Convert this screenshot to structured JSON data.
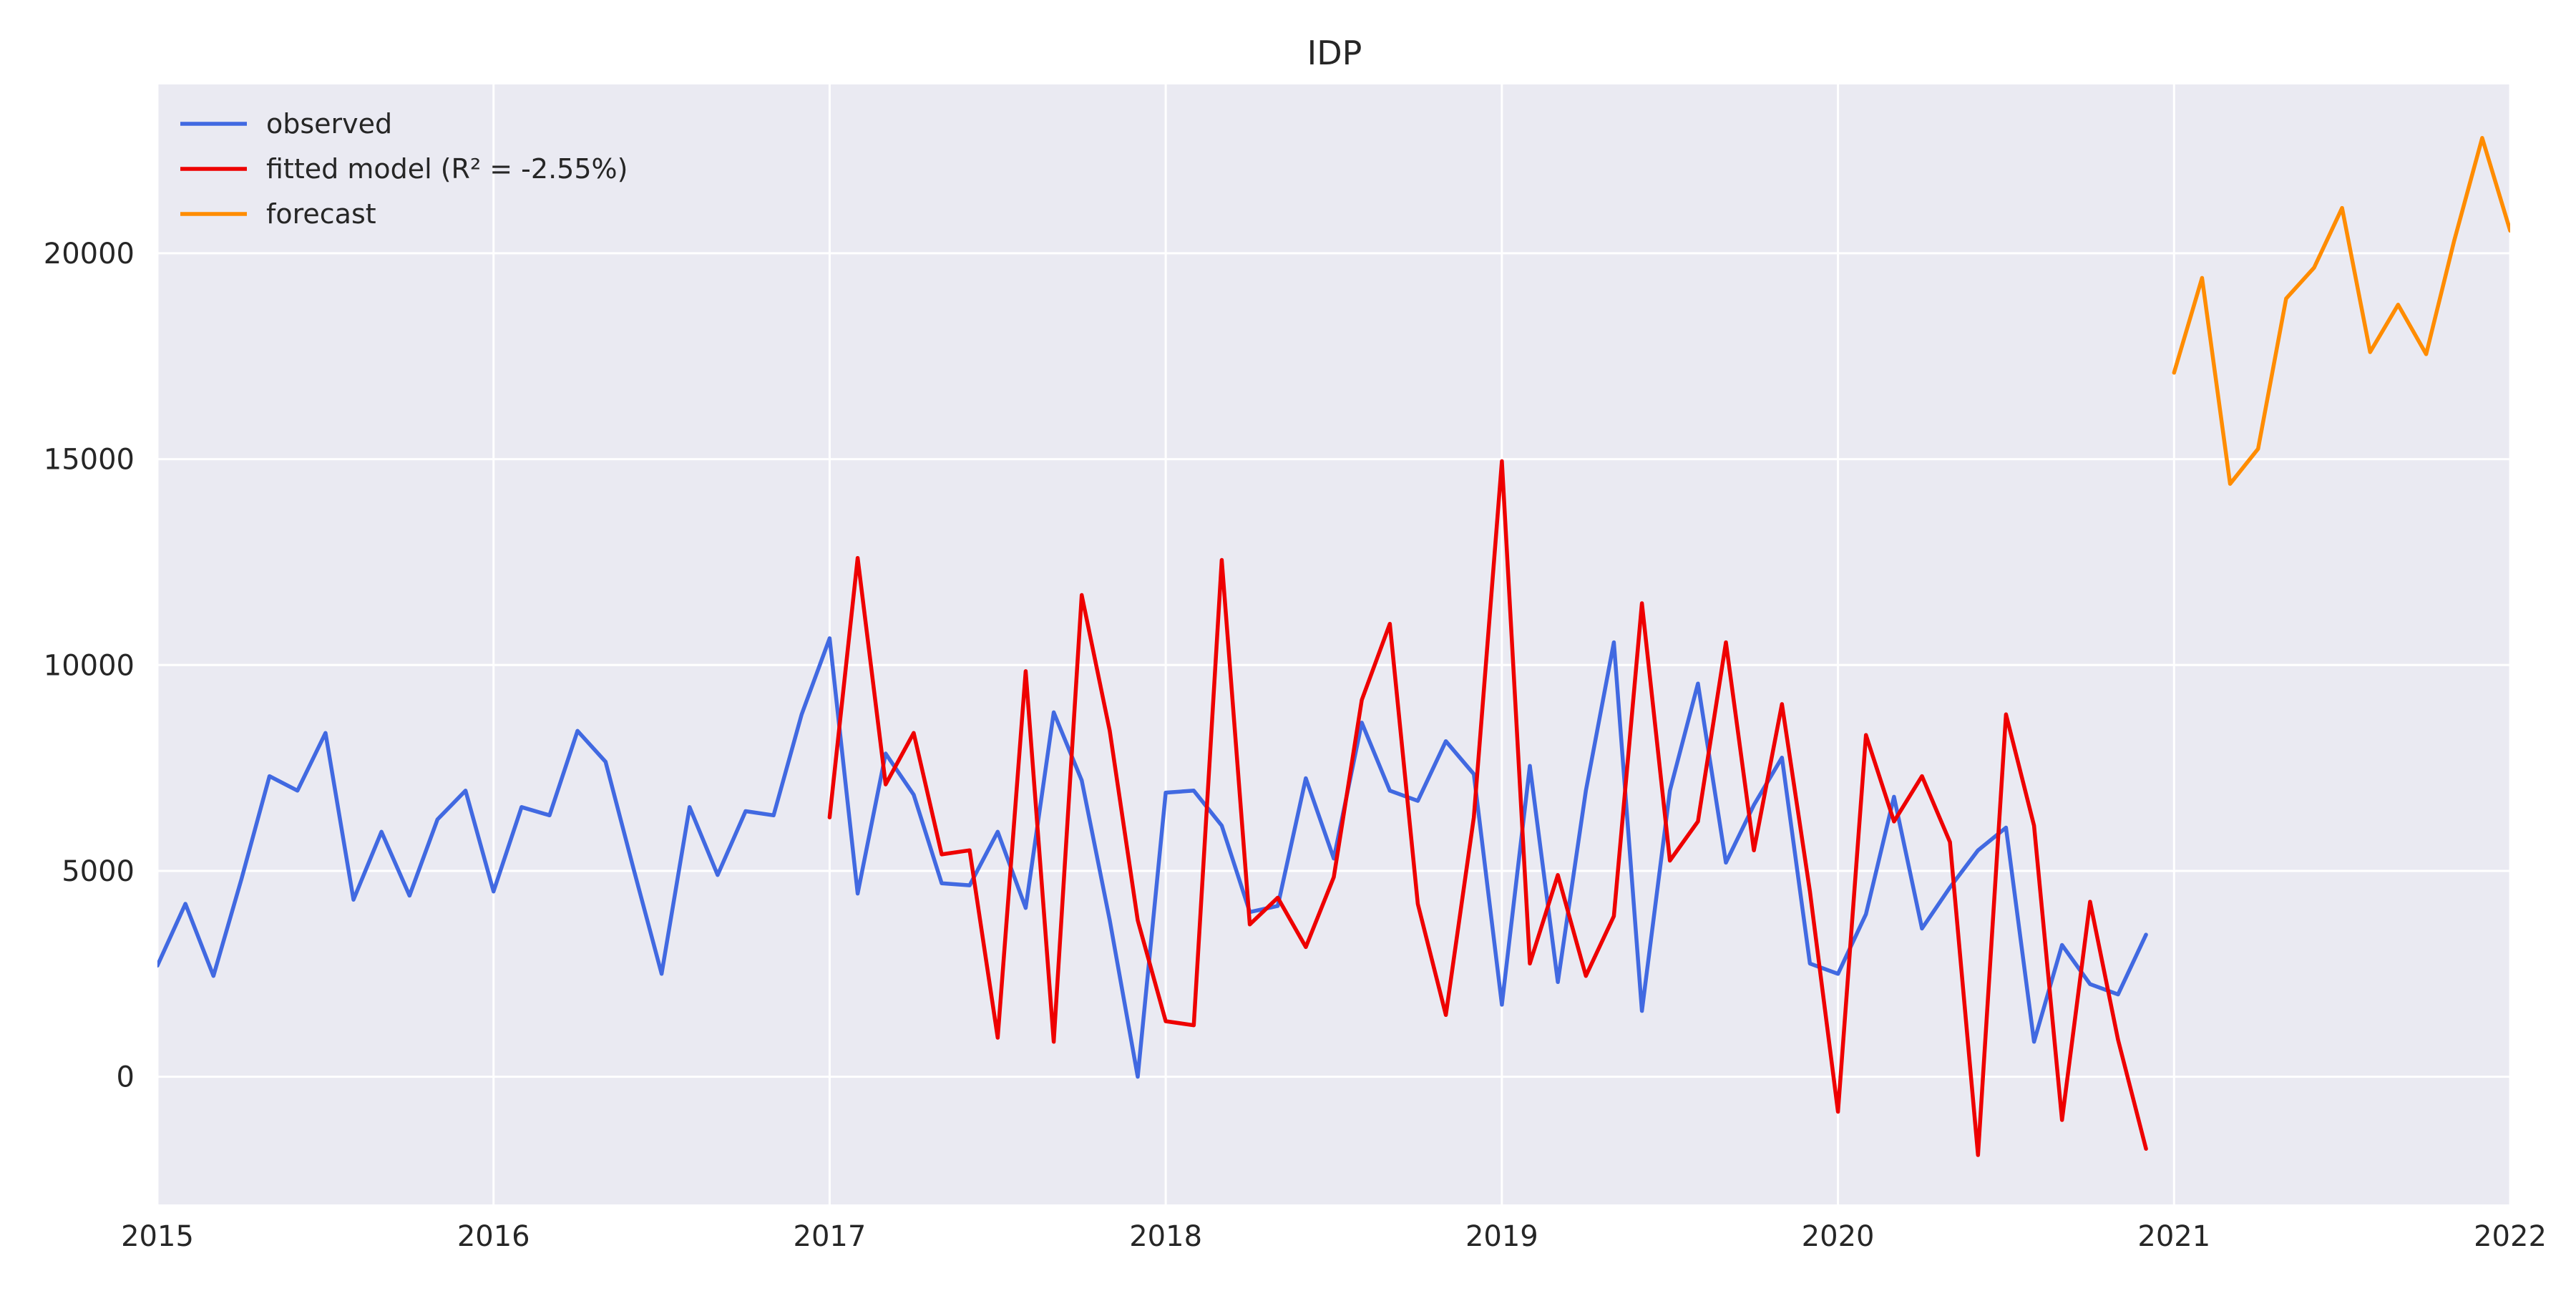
{
  "chart_data": {
    "type": "line",
    "title": "IDP",
    "xlabel": "",
    "ylabel": "",
    "x_axis": {
      "type": "date",
      "min": "2015-01",
      "max": "2022-01",
      "ticks": [
        "2015",
        "2016",
        "2017",
        "2018",
        "2019",
        "2020",
        "2021",
        "2022"
      ]
    },
    "y_axis": {
      "min": -3100,
      "max": 24100,
      "ticks": [
        0,
        5000,
        10000,
        15000,
        20000
      ],
      "tick_labels": [
        "0",
        "5000",
        "10000",
        "15000",
        "20000"
      ]
    },
    "grid": true,
    "legend_placement": "top-left",
    "colors": {
      "observed": "#4169e1",
      "fitted": "#ee0000",
      "forecast": "#ff8c00",
      "plot_background": "#eaeaf2",
      "grid": "#ffffff"
    },
    "series": [
      {
        "name": "observed",
        "color": "#4169e1",
        "start": "2015-01",
        "values": [
          2700,
          4200,
          2450,
          4800,
          7300,
          6950,
          8350,
          4300,
          5950,
          4400,
          6250,
          6950,
          4500,
          6550,
          6350,
          8400,
          7650,
          5050,
          2500,
          6550,
          4900,
          6450,
          6350,
          8800,
          10650,
          4450,
          7850,
          6850,
          4700,
          4650,
          5950,
          4100,
          8850,
          7200,
          3800,
          0,
          6900,
          6950,
          6100,
          4000,
          4150,
          7250,
          5300,
          8600,
          6950,
          6700,
          8150,
          7350,
          1750,
          7550,
          2300,
          6950,
          10550,
          1600,
          6950,
          9550,
          5200,
          6600,
          7750,
          2750,
          2500,
          3950,
          6800,
          3600,
          4600,
          5500,
          6050,
          850,
          3200,
          2250,
          2000,
          3450
        ]
      },
      {
        "name": "fitted model (R² = -2.55%)",
        "color": "#ee0000",
        "start": "2017-01",
        "values": [
          6300,
          12600,
          7100,
          8350,
          5400,
          5500,
          950,
          9850,
          850,
          11700,
          8400,
          3800,
          1350,
          1250,
          12550,
          3700,
          4350,
          3150,
          4850,
          9150,
          11000,
          4200,
          1500,
          6300,
          14950,
          2750,
          4900,
          2450,
          3900,
          11500,
          5250,
          6200,
          10550,
          5500,
          9050,
          4500,
          -850,
          8300,
          6200,
          7300,
          5700,
          -1900,
          8800,
          6100,
          -1050,
          4250,
          900,
          -1750
        ]
      },
      {
        "name": "forecast",
        "color": "#ff8c00",
        "start": "2021-01",
        "values": [
          17100,
          19400,
          14400,
          15250,
          18900,
          19650,
          21100,
          17600,
          18750,
          17550,
          20300,
          22800,
          20550
        ]
      }
    ]
  }
}
